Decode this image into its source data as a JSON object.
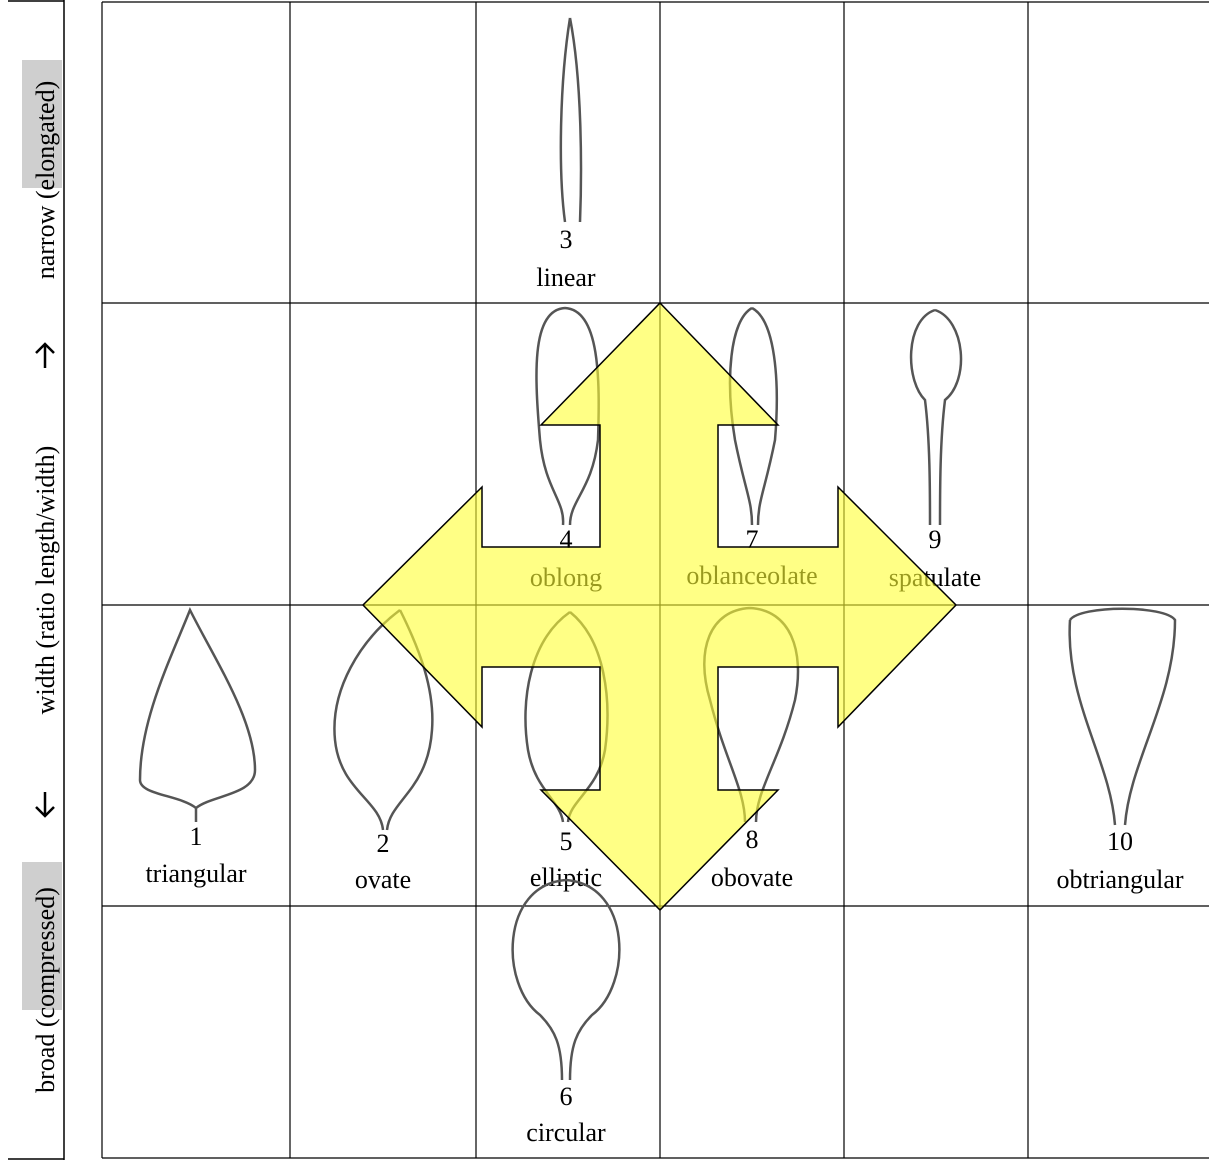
{
  "axis": {
    "narrow": "narrow (elongated)",
    "middle": "width (ratio length/width)",
    "broad": "broad (compressed)"
  },
  "leaves": [
    {
      "number": 1,
      "name": "triangular"
    },
    {
      "number": 2,
      "name": "ovate"
    },
    {
      "number": 3,
      "name": "linear"
    },
    {
      "number": 4,
      "name": "oblong"
    },
    {
      "number": 5,
      "name": "elliptic"
    },
    {
      "number": 6,
      "name": "circular"
    },
    {
      "number": 7,
      "name": "oblanceolate"
    },
    {
      "number": 8,
      "name": "obovate"
    },
    {
      "number": 9,
      "name": "spatulate"
    },
    {
      "number": 10,
      "name": "obtriangular"
    }
  ]
}
